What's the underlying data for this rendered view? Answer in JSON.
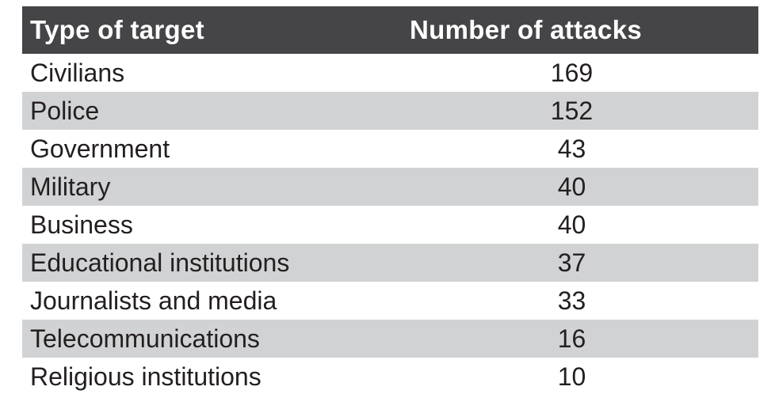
{
  "colors": {
    "header_background": "#454447",
    "header_text": "#ffffff",
    "row_stripe": "#d1d2d4",
    "body_text": "#231f20",
    "page_background": "#ffffff"
  },
  "chart_data": {
    "type": "table",
    "title": "",
    "columns": [
      "Type of target",
      "Number of attacks"
    ],
    "rows": [
      [
        "Civilians",
        169
      ],
      [
        "Police",
        152
      ],
      [
        "Government",
        43
      ],
      [
        "Military",
        40
      ],
      [
        "Business",
        40
      ],
      [
        "Educational institutions",
        37
      ],
      [
        "Journalists and media",
        33
      ],
      [
        "Telecommunications",
        16
      ],
      [
        "Religious institutions",
        10
      ]
    ]
  }
}
